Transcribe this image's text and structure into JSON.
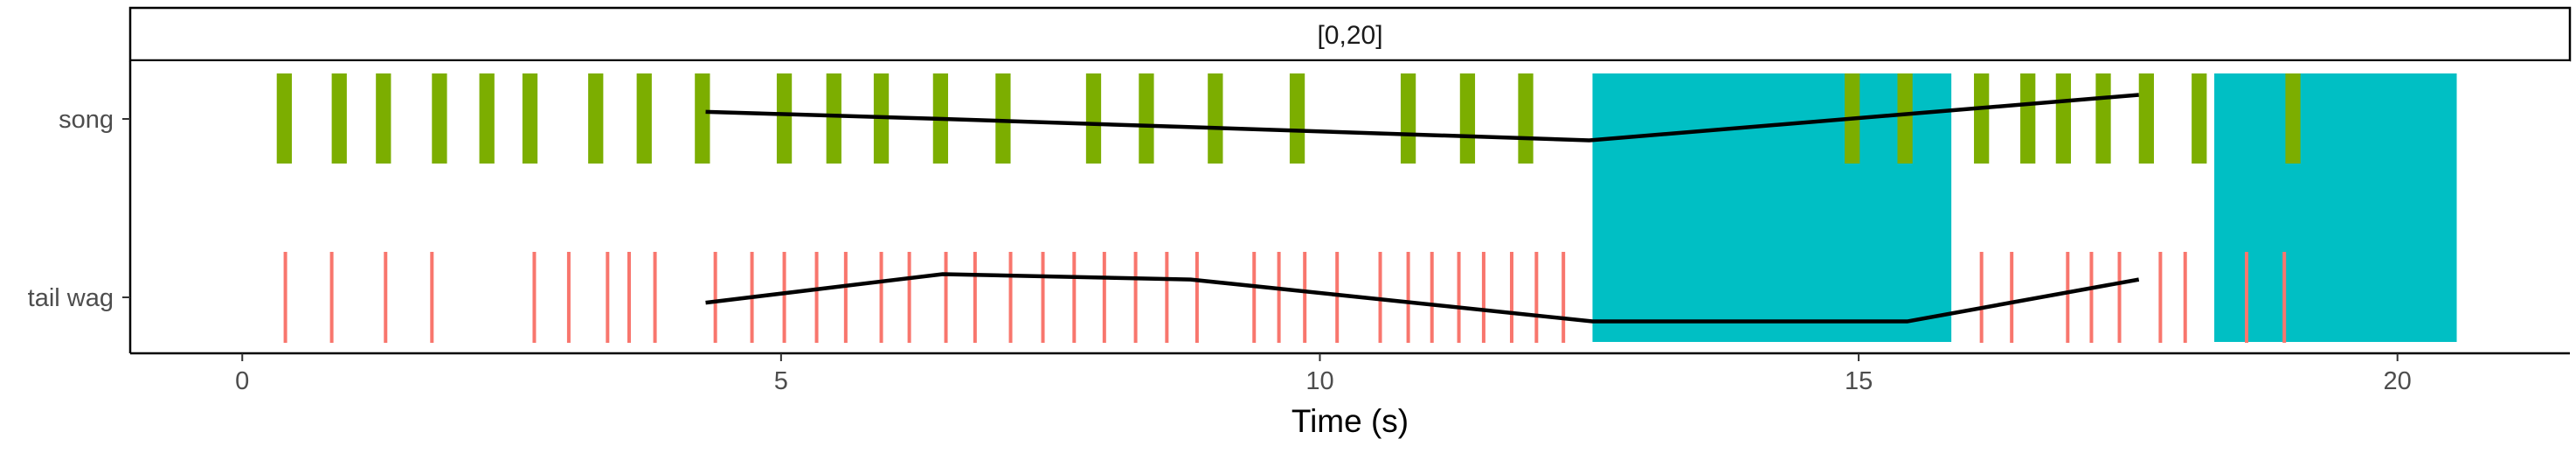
{
  "chart_data": {
    "type": "event-raster",
    "facet_label": "[0,20]",
    "xlabel": "Time (s)",
    "ylabel": "",
    "xlim": [
      -1.04,
      21.6
    ],
    "x_ticks": [
      0,
      5,
      10,
      15,
      20
    ],
    "x_tick_labels": [
      "0",
      "5",
      "10",
      "15",
      "20"
    ],
    "rows": [
      "song",
      "tail wag"
    ],
    "grid": false,
    "colors": {
      "song": "#7cae00",
      "tail_wag": "#f8766d",
      "highlight": "#00bfc4",
      "line": "#000000"
    },
    "highlight_intervals": [
      [
        12.53,
        15.86
      ],
      [
        18.3,
        20.55
      ]
    ],
    "song_events": [
      {
        "start": 0.32,
        "end": 0.46
      },
      {
        "start": 0.83,
        "end": 0.97
      },
      {
        "start": 1.24,
        "end": 1.38
      },
      {
        "start": 1.76,
        "end": 1.9
      },
      {
        "start": 2.2,
        "end": 2.34
      },
      {
        "start": 2.6,
        "end": 2.74
      },
      {
        "start": 3.21,
        "end": 3.35
      },
      {
        "start": 3.66,
        "end": 3.8
      },
      {
        "start": 4.2,
        "end": 4.34
      },
      {
        "start": 4.96,
        "end": 5.1
      },
      {
        "start": 5.42,
        "end": 5.56
      },
      {
        "start": 5.86,
        "end": 6.0
      },
      {
        "start": 6.41,
        "end": 6.55
      },
      {
        "start": 6.99,
        "end": 7.13
      },
      {
        "start": 7.83,
        "end": 7.97
      },
      {
        "start": 8.32,
        "end": 8.46
      },
      {
        "start": 8.96,
        "end": 9.1
      },
      {
        "start": 9.72,
        "end": 9.86
      },
      {
        "start": 10.75,
        "end": 10.89
      },
      {
        "start": 11.3,
        "end": 11.44
      },
      {
        "start": 11.84,
        "end": 11.98
      },
      {
        "start": 14.87,
        "end": 15.01
      },
      {
        "start": 15.36,
        "end": 15.5
      },
      {
        "start": 16.07,
        "end": 16.21
      },
      {
        "start": 16.5,
        "end": 16.64
      },
      {
        "start": 16.83,
        "end": 16.97
      },
      {
        "start": 17.2,
        "end": 17.34
      },
      {
        "start": 17.6,
        "end": 17.74
      },
      {
        "start": 18.09,
        "end": 18.23
      },
      {
        "start": 18.96,
        "end": 19.1
      }
    ],
    "tail_wag_events": [
      0.4,
      0.83,
      1.33,
      1.76,
      2.71,
      3.03,
      3.39,
      3.59,
      3.83,
      4.39,
      4.73,
      5.03,
      5.33,
      5.6,
      5.93,
      6.19,
      6.53,
      6.8,
      7.13,
      7.43,
      7.72,
      8.0,
      8.29,
      8.58,
      8.86,
      9.39,
      9.62,
      9.86,
      10.16,
      10.56,
      10.82,
      11.04,
      11.29,
      11.52,
      11.78,
      12.01,
      12.26,
      16.14,
      16.42,
      16.94,
      17.16,
      17.42,
      17.8,
      18.03,
      18.6,
      18.95
    ],
    "connector_lines": [
      {
        "name": "song",
        "x": [
          4.3,
          6.5,
          8.75,
          12.5,
          17.6
        ],
        "y": [
          "song",
          "song",
          "song",
          "song",
          "song"
        ],
        "y_offset": [
          0.08,
          0.0,
          -0.09,
          -0.24,
          0.27
        ]
      },
      {
        "name": "tail wag",
        "x": [
          4.3,
          6.5,
          8.8,
          12.53,
          15.45,
          17.6
        ],
        "y": [
          "tail wag",
          "tail wag",
          "tail wag",
          "tail wag",
          "tail wag",
          "tail wag"
        ],
        "y_offset": [
          -0.06,
          0.26,
          0.2,
          -0.27,
          -0.27,
          0.2
        ]
      }
    ]
  }
}
